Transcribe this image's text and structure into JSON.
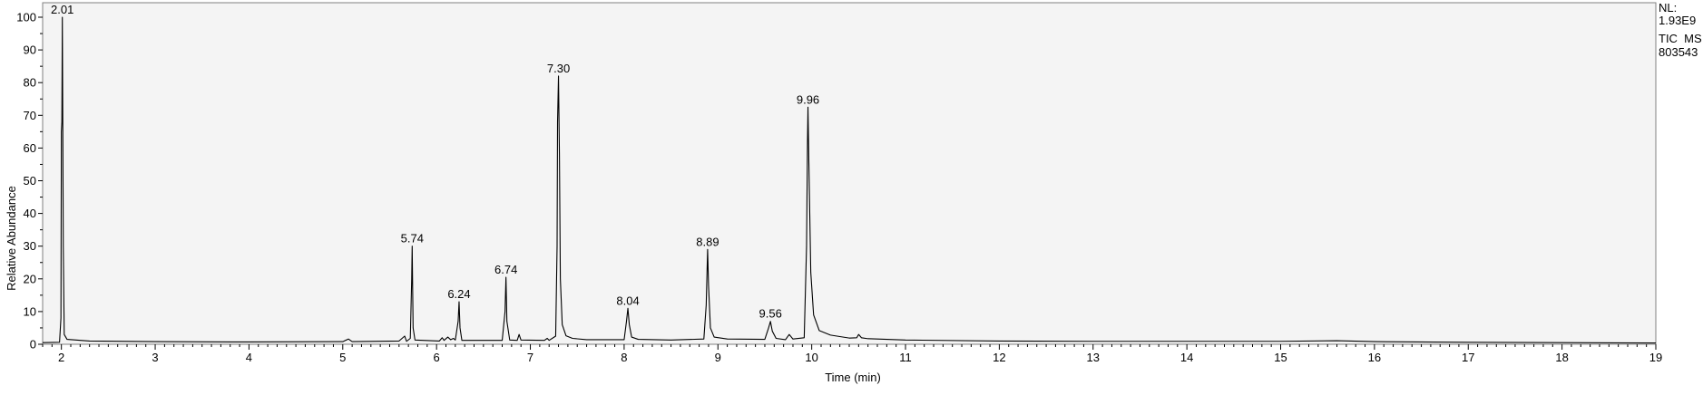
{
  "chart_data": {
    "type": "line",
    "title": "",
    "xlabel": "Time (min)",
    "ylabel": "Relative Abundance",
    "xlim": [
      1.8,
      19
    ],
    "ylim": [
      0,
      100
    ],
    "x_ticks": [
      2,
      3,
      4,
      5,
      6,
      7,
      8,
      9,
      10,
      11,
      12,
      13,
      14,
      15,
      16,
      17,
      18,
      19
    ],
    "y_ticks": [
      0,
      10,
      20,
      30,
      40,
      50,
      60,
      70,
      80,
      90,
      100
    ],
    "grid": false,
    "info_text": [
      "NL:",
      "1.93E9",
      "TIC  MS",
      "803543"
    ],
    "colors": {
      "plot_background": "#f4f4f4",
      "trace": "#000000",
      "frame": "#808080"
    },
    "peak_labels": [
      {
        "x": 2.01,
        "y": 100,
        "label": "2.01"
      },
      {
        "x": 5.74,
        "y": 30,
        "label": "5.74"
      },
      {
        "x": 6.24,
        "y": 13,
        "label": "6.24"
      },
      {
        "x": 6.74,
        "y": 20.5,
        "label": "6.74"
      },
      {
        "x": 7.3,
        "y": 82,
        "label": "7.30"
      },
      {
        "x": 8.04,
        "y": 11,
        "label": "8.04"
      },
      {
        "x": 8.89,
        "y": 29,
        "label": "8.89"
      },
      {
        "x": 9.56,
        "y": 7,
        "label": "9.56"
      },
      {
        "x": 9.96,
        "y": 72.5,
        "label": "9.96"
      }
    ],
    "series": [
      {
        "values_xy": [
          [
            1.8,
            0.5
          ],
          [
            1.98,
            0.6
          ],
          [
            1.995,
            8
          ],
          [
            2.0,
            65
          ],
          [
            2.005,
            68
          ],
          [
            2.01,
            100
          ],
          [
            2.015,
            66
          ],
          [
            2.02,
            30
          ],
          [
            2.03,
            3
          ],
          [
            2.06,
            1.5
          ],
          [
            2.3,
            1.0
          ],
          [
            3.0,
            0.8
          ],
          [
            4.0,
            0.7
          ],
          [
            5.0,
            0.8
          ],
          [
            5.06,
            1.6
          ],
          [
            5.1,
            0.8
          ],
          [
            5.6,
            1.0
          ],
          [
            5.66,
            2.5
          ],
          [
            5.68,
            0.9
          ],
          [
            5.72,
            1.8
          ],
          [
            5.735,
            20
          ],
          [
            5.74,
            30
          ],
          [
            5.75,
            5
          ],
          [
            5.77,
            1.3
          ],
          [
            6.03,
            1.0
          ],
          [
            6.06,
            2.0
          ],
          [
            6.08,
            1.2
          ],
          [
            6.12,
            2.2
          ],
          [
            6.15,
            1.4
          ],
          [
            6.18,
            1.8
          ],
          [
            6.2,
            1.3
          ],
          [
            6.23,
            7
          ],
          [
            6.24,
            13
          ],
          [
            6.25,
            5
          ],
          [
            6.27,
            1.2
          ],
          [
            6.7,
            1.2
          ],
          [
            6.73,
            10
          ],
          [
            6.74,
            20.5
          ],
          [
            6.75,
            7
          ],
          [
            6.78,
            1.3
          ],
          [
            6.86,
            1.2
          ],
          [
            6.88,
            3.0
          ],
          [
            6.9,
            1.3
          ],
          [
            7.15,
            1.2
          ],
          [
            7.18,
            1.8
          ],
          [
            7.2,
            1.2
          ],
          [
            7.27,
            2.5
          ],
          [
            7.285,
            30
          ],
          [
            7.29,
            68
          ],
          [
            7.3,
            82
          ],
          [
            7.31,
            58
          ],
          [
            7.32,
            20
          ],
          [
            7.34,
            6
          ],
          [
            7.38,
            2.6
          ],
          [
            7.45,
            1.8
          ],
          [
            7.6,
            1.4
          ],
          [
            8.0,
            1.4
          ],
          [
            8.025,
            7
          ],
          [
            8.04,
            11
          ],
          [
            8.055,
            6
          ],
          [
            8.08,
            2.2
          ],
          [
            8.15,
            1.5
          ],
          [
            8.5,
            1.3
          ],
          [
            8.85,
            1.6
          ],
          [
            8.875,
            12
          ],
          [
            8.89,
            29
          ],
          [
            8.9,
            18
          ],
          [
            8.92,
            5
          ],
          [
            8.96,
            2.2
          ],
          [
            9.1,
            1.6
          ],
          [
            9.5,
            1.5
          ],
          [
            9.54,
            5
          ],
          [
            9.56,
            7
          ],
          [
            9.58,
            4
          ],
          [
            9.62,
            1.8
          ],
          [
            9.72,
            1.4
          ],
          [
            9.76,
            3.0
          ],
          [
            9.8,
            1.6
          ],
          [
            9.92,
            2.0
          ],
          [
            9.945,
            30
          ],
          [
            9.955,
            62
          ],
          [
            9.96,
            72.5
          ],
          [
            9.97,
            55
          ],
          [
            9.99,
            22
          ],
          [
            10.02,
            9
          ],
          [
            10.08,
            4.2
          ],
          [
            10.2,
            2.8
          ],
          [
            10.4,
            1.9
          ],
          [
            10.48,
            2.0
          ],
          [
            10.5,
            3.0
          ],
          [
            10.53,
            2.0
          ],
          [
            10.6,
            1.7
          ],
          [
            11.0,
            1.3
          ],
          [
            12.0,
            1.0
          ],
          [
            13.0,
            0.9
          ],
          [
            14.0,
            0.9
          ],
          [
            15.0,
            0.9
          ],
          [
            15.6,
            1.1
          ],
          [
            16.0,
            0.8
          ],
          [
            17.0,
            0.6
          ],
          [
            18.0,
            0.5
          ],
          [
            19.0,
            0.4
          ]
        ]
      }
    ]
  }
}
